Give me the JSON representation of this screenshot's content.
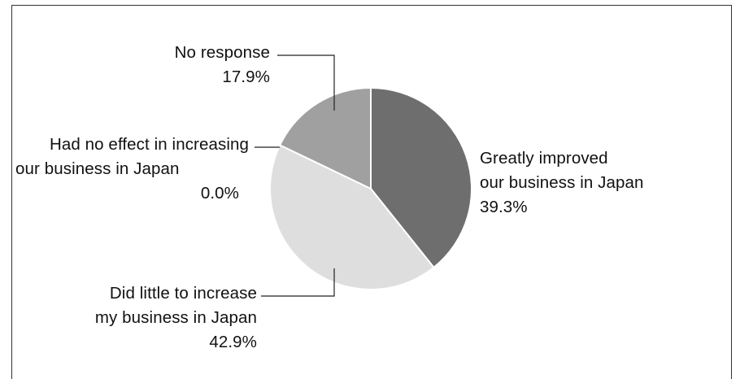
{
  "chart_data": {
    "type": "pie",
    "title": "",
    "slices": [
      {
        "label_lines": [
          "Greatly improved",
          "our business in Japan"
        ],
        "value": 39.3,
        "value_label": "39.3%",
        "color": "#6e6e6e"
      },
      {
        "label_lines": [
          "Did little to increase",
          "my business in Japan"
        ],
        "value": 42.9,
        "value_label": "42.9%",
        "color": "#dedede"
      },
      {
        "label_lines": [
          "Had no effect in increasing",
          "our business in Japan"
        ],
        "value": 0.0,
        "value_label": "0.0%",
        "color": "#c8c8c8"
      },
      {
        "label_lines": [
          "No response"
        ],
        "value": 17.9,
        "value_label": "17.9%",
        "color": "#a0a0a0"
      }
    ],
    "start_angle": "12 o'clock",
    "direction": "clockwise",
    "legend": "none"
  }
}
